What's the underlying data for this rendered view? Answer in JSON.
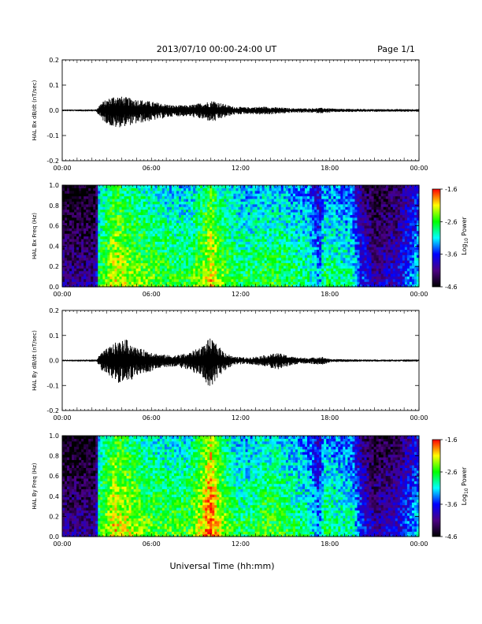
{
  "header": {
    "date_range": "2013/07/10  00:00-24:00 UT",
    "page": "Page 1/1"
  },
  "xlabel": "Universal Time (hh:mm)",
  "colors": {
    "colormap": [
      "#000000",
      "#4b0082",
      "#0000ff",
      "#00ffff",
      "#00ff00",
      "#ffff00",
      "#ff0000"
    ],
    "trace": "#000000",
    "axes": "#000000"
  },
  "chart_data": [
    {
      "type": "line",
      "ylabel": "HAL Bx dB/dt (nT/sec)",
      "xlim": [
        0,
        24
      ],
      "ylim": [
        -0.2,
        0.2
      ],
      "x_ticks": [
        "00:00",
        "06:00",
        "12:00",
        "18:00",
        "00:00"
      ],
      "y_ticks": [
        "-0.2",
        "-0.1",
        "0.0",
        "0.1",
        "0.2"
      ],
      "envelope": {
        "x_hours": [
          0,
          2.3,
          2.6,
          3.5,
          4.5,
          5.5,
          6.5,
          7.5,
          8.5,
          9.4,
          9.8,
          10.2,
          10.6,
          11.5,
          12.5,
          13.5,
          14.5,
          15.5,
          16.5,
          17.5,
          18.5,
          19.5,
          21,
          22.5,
          24
        ],
        "amplitude": [
          0.003,
          0.004,
          0.03,
          0.06,
          0.05,
          0.04,
          0.03,
          0.02,
          0.02,
          0.03,
          0.035,
          0.04,
          0.03,
          0.015,
          0.012,
          0.015,
          0.012,
          0.008,
          0.008,
          0.01,
          0.006,
          0.006,
          0.005,
          0.005,
          0.005
        ]
      }
    },
    {
      "type": "heatmap",
      "ylabel": "HAL Bx Freq (Hz)",
      "xlim": [
        0,
        24
      ],
      "ylim": [
        0,
        1.0
      ],
      "x_ticks": [
        "00:00",
        "06:00",
        "12:00",
        "18:00",
        "00:00"
      ],
      "y_ticks": [
        "0.0",
        "0.2",
        "0.4",
        "0.6",
        "0.8",
        "1.0"
      ],
      "colorbar": {
        "label": "Log10 Power",
        "range": [
          -4.6,
          -1.6
        ],
        "ticks": [
          "-1.6",
          "-2.6",
          "-3.6",
          "-4.6"
        ]
      },
      "activity_profile": {
        "x_hours": [
          0,
          2.3,
          2.4,
          3.5,
          4.5,
          5.5,
          6.5,
          7.5,
          8.5,
          9.5,
          10.0,
          10.5,
          11.5,
          12.5,
          13.5,
          14.5,
          15.5,
          16.5,
          17.3,
          17.6,
          18.5,
          19.5,
          20.0,
          21.0,
          22.5,
          24
        ],
        "log_power": [
          -4.3,
          -4.3,
          -3.0,
          -2.4,
          -2.6,
          -2.7,
          -2.8,
          -2.9,
          -2.9,
          -2.6,
          -2.3,
          -2.6,
          -2.9,
          -3.0,
          -2.9,
          -2.9,
          -3.0,
          -3.1,
          -3.6,
          -3.0,
          -3.1,
          -3.2,
          -3.7,
          -4.2,
          -4.0,
          -3.4
        ]
      }
    },
    {
      "type": "line",
      "ylabel": "HAL By dB/dt (nT/sec)",
      "xlim": [
        0,
        24
      ],
      "ylim": [
        -0.2,
        0.2
      ],
      "x_ticks": [
        "00:00",
        "06:00",
        "12:00",
        "18:00",
        "00:00"
      ],
      "y_ticks": [
        "-0.2",
        "-0.1",
        "0.0",
        "0.1",
        "0.2"
      ],
      "envelope": {
        "x_hours": [
          0,
          2.3,
          2.6,
          3.5,
          4.3,
          5.0,
          5.8,
          6.5,
          7.5,
          8.5,
          9.5,
          9.9,
          10.3,
          10.8,
          11.5,
          12.5,
          13.5,
          14.5,
          15.5,
          16.5,
          17.5,
          18.0,
          19.0,
          20.5,
          22.5,
          24
        ],
        "amplitude": [
          0.003,
          0.004,
          0.03,
          0.07,
          0.085,
          0.05,
          0.04,
          0.025,
          0.02,
          0.03,
          0.06,
          0.09,
          0.07,
          0.04,
          0.015,
          0.012,
          0.02,
          0.03,
          0.015,
          0.01,
          0.015,
          0.006,
          0.005,
          0.004,
          0.004,
          0.004
        ]
      }
    },
    {
      "type": "heatmap",
      "ylabel": "HAL By Freq (Hz)",
      "xlim": [
        0,
        24
      ],
      "ylim": [
        0,
        1.0
      ],
      "x_ticks": [
        "00:00",
        "06:00",
        "12:00",
        "18:00",
        "00:00"
      ],
      "y_ticks": [
        "0.0",
        "0.2",
        "0.4",
        "0.6",
        "0.8",
        "1.0"
      ],
      "colorbar": {
        "label": "Log10 Power",
        "range": [
          -4.6,
          -1.6
        ],
        "ticks": [
          "-1.6",
          "-2.6",
          "-3.6",
          "-4.6"
        ]
      },
      "activity_profile": {
        "x_hours": [
          0,
          2.3,
          2.4,
          3.5,
          4.5,
          5.5,
          6.5,
          7.5,
          8.5,
          9.5,
          10.0,
          10.5,
          11.5,
          12.5,
          13.5,
          14.5,
          15.5,
          16.5,
          17.3,
          17.6,
          18.5,
          19.5,
          20.0,
          21.0,
          22.5,
          24
        ],
        "log_power": [
          -4.3,
          -4.3,
          -2.9,
          -2.3,
          -2.5,
          -2.7,
          -2.8,
          -2.8,
          -2.8,
          -2.3,
          -1.9,
          -2.4,
          -2.9,
          -3.0,
          -2.8,
          -2.8,
          -3.0,
          -3.1,
          -3.6,
          -3.0,
          -3.1,
          -3.2,
          -3.7,
          -4.2,
          -4.0,
          -3.4
        ]
      }
    }
  ]
}
